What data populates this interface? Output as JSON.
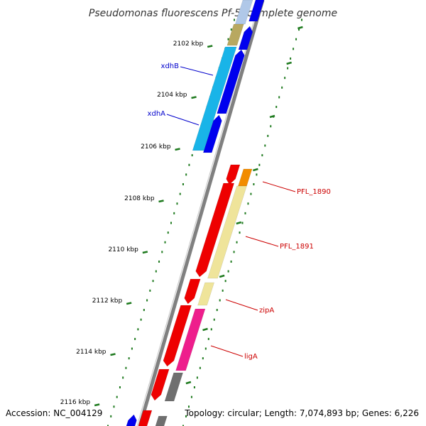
{
  "title": "Pseudomonas fluorescens Pf-5, complete genome",
  "footer": {
    "accession": "Accession: NC_004129",
    "topology": "Topology: circular; Length: 7,074,893 bp; Genes: 6,226"
  },
  "colors": {
    "backbone": "#808080",
    "tick": "#1e7a1e",
    "forward_gene": "#0000ee",
    "reverse_gene": "#ee0000",
    "cyan_gene": "#19b4e8",
    "khaki_gene": "#b8a860",
    "yellow_gene": "#efe49a",
    "orange_gene": "#f28c00",
    "pink_gene": "#ee1e8c",
    "gray_gene": "#6f6f6f",
    "label_blue": "#0000cc",
    "label_red": "#cc0000"
  },
  "ticks": [
    "2102 kbp",
    "2104 kbp",
    "2106 kbp",
    "2108 kbp",
    "2110 kbp",
    "2112 kbp",
    "2114 kbp",
    "2116 kbp"
  ],
  "gene_labels": [
    {
      "text": "xdhB",
      "color_key": "label_blue"
    },
    {
      "text": "xdhA",
      "color_key": "label_blue"
    },
    {
      "text": "PFL_1890",
      "color_key": "label_red"
    },
    {
      "text": "PFL_1891",
      "color_key": "label_red"
    },
    {
      "text": "zipA",
      "color_key": "label_red"
    },
    {
      "text": "ligA",
      "color_key": "label_red"
    }
  ]
}
